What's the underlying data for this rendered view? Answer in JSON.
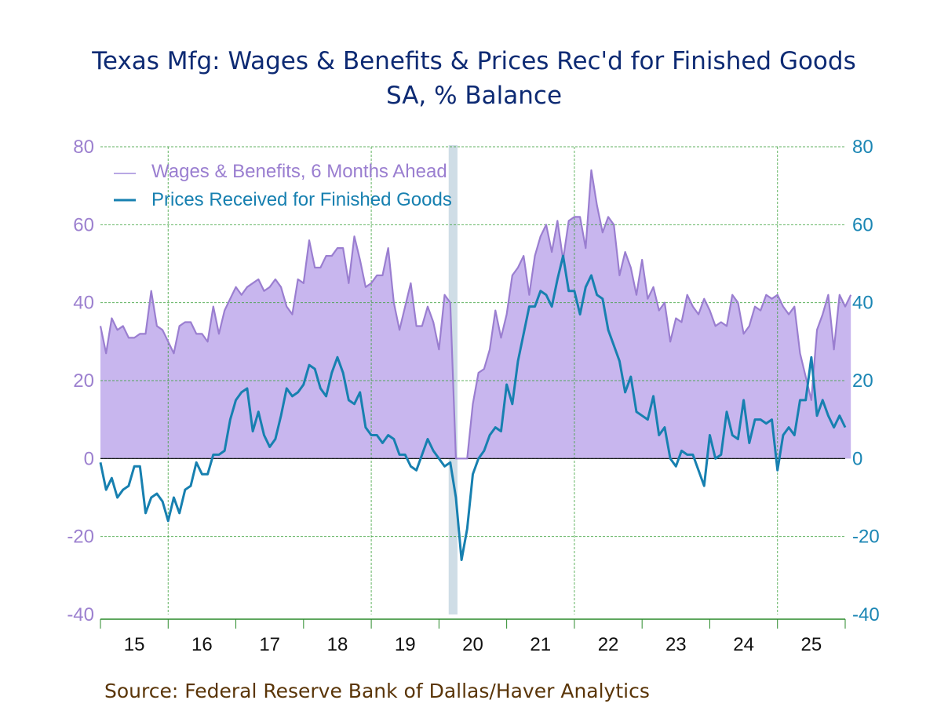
{
  "chart_data": {
    "type": "area",
    "title": "Texas Mfg: Wages & Benefits & Prices Rec'd for Finished Goods",
    "subtitle": "SA, % Balance",
    "source": "Source:  Federal Reserve Bank of Dallas/Haver Analytics",
    "xlabel": "",
    "ylabel_left": "",
    "ylabel_right": "",
    "ylim": [
      -40,
      80
    ],
    "yticks": [
      80,
      60,
      40,
      20,
      0,
      -20,
      -40
    ],
    "x_start": "2015-01",
    "frequency": "monthly",
    "x_tick_labels": [
      "15",
      "16",
      "17",
      "18",
      "19",
      "20",
      "21",
      "22",
      "23",
      "24",
      "25"
    ],
    "grid": true,
    "legend_position": "top-left",
    "recession_bands": [
      {
        "start": "2020-03",
        "end": "2020-04"
      }
    ],
    "colors": {
      "wages_fill": "#c8b6ee",
      "wages_line": "#9a7ed0",
      "prices_line": "#1780b0",
      "recession": "#cfdde6",
      "grid": "#3aa03a",
      "title": "#0d2a73",
      "source": "#5a3508"
    },
    "series": [
      {
        "name": "Wages & Benefits, 6 Months Ahead",
        "style": "area",
        "values": [
          34,
          27,
          36,
          33,
          34,
          31,
          31,
          32,
          32,
          43,
          34,
          33,
          30,
          27,
          34,
          35,
          35,
          32,
          32,
          30,
          39,
          32,
          38,
          41,
          44,
          42,
          44,
          45,
          46,
          43,
          44,
          46,
          44,
          39,
          37,
          46,
          45,
          56,
          49,
          49,
          52,
          52,
          54,
          54,
          45,
          57,
          51,
          44,
          45,
          47,
          47,
          54,
          40,
          33,
          39,
          45,
          34,
          34,
          39,
          35,
          28,
          42,
          40,
          0,
          0,
          0,
          14,
          22,
          23,
          28,
          38,
          31,
          37,
          47,
          49,
          52,
          42,
          52,
          57,
          60,
          53,
          61,
          51,
          61,
          62,
          62,
          54,
          74,
          65,
          58,
          62,
          60,
          47,
          53,
          49,
          42,
          51,
          41,
          44,
          38,
          40,
          30,
          36,
          35,
          42,
          39,
          37,
          41,
          38,
          34,
          35,
          34,
          42,
          40,
          32,
          34,
          39,
          38,
          42,
          41,
          42,
          39,
          37,
          39,
          27,
          21,
          15,
          33,
          37,
          42,
          28,
          42,
          39,
          42
        ]
      },
      {
        "name": "Prices Received for Finished Goods",
        "style": "line",
        "values": [
          -1,
          -8,
          -5,
          -10,
          -8,
          -7,
          -2,
          -2,
          -14,
          -10,
          -9,
          -11,
          -16,
          -10,
          -14,
          -8,
          -7,
          -1,
          -4,
          -4,
          1,
          1,
          2,
          10,
          15,
          17,
          18,
          7,
          12,
          6,
          3,
          5,
          11,
          18,
          16,
          17,
          19,
          24,
          23,
          18,
          16,
          22,
          26,
          22,
          15,
          14,
          17,
          8,
          6,
          6,
          4,
          6,
          5,
          1,
          1,
          -2,
          -3,
          1,
          5,
          2,
          0,
          -2,
          -1,
          -10,
          -26,
          -18,
          -4,
          0,
          2,
          6,
          8,
          7,
          19,
          14,
          25,
          32,
          39,
          39,
          43,
          42,
          39,
          46,
          52,
          43,
          43,
          37,
          44,
          47,
          42,
          41,
          33,
          29,
          25,
          17,
          21,
          12,
          11,
          10,
          16,
          6,
          8,
          0,
          -2,
          2,
          1,
          1,
          -3,
          -7,
          6,
          0,
          1,
          12,
          6,
          5,
          15,
          4,
          10,
          10,
          9,
          10,
          -3,
          6,
          8,
          6,
          15,
          15,
          26,
          11,
          15,
          11,
          8,
          11,
          8
        ]
      }
    ]
  }
}
